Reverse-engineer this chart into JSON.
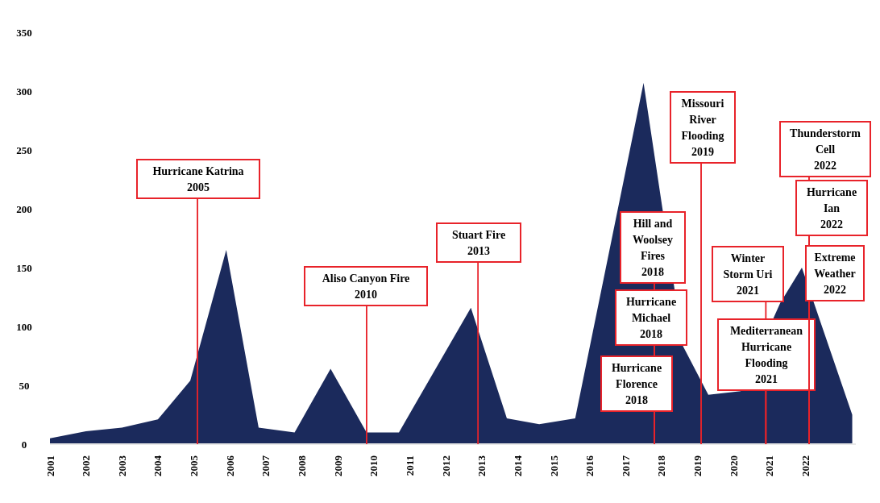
{
  "chart_data": {
    "type": "area",
    "x": [
      2001,
      2002,
      2003,
      2004,
      2004.9,
      2005.9,
      2006.8,
      2007.8,
      2008.8,
      2009.8,
      2010.7,
      2012.7,
      2013.7,
      2014.6,
      2015.6,
      2016.6,
      2017.5,
      2018.6,
      2019.3,
      2020.2,
      2021.3,
      2021.9,
      2022.6,
      2023.3
    ],
    "series": [
      {
        "color": "#1b2a5c",
        "values": [
          5,
          11,
          14,
          21,
          54,
          165,
          14,
          10,
          64,
          10,
          10,
          116,
          22,
          17,
          22,
          null,
          307,
          83,
          42,
          45,
          120,
          150,
          null,
          25
        ]
      }
    ],
    "xlim": [
      2001,
      2023.4
    ],
    "xticks": [
      2001,
      2002,
      2003,
      2004,
      2005,
      2006,
      2007,
      2008,
      2009,
      2010,
      2011,
      2012,
      2013,
      2014,
      2015,
      2016,
      2017,
      2018,
      2019,
      2020,
      2021,
      2022
    ],
    "ylim": [
      0,
      350
    ],
    "yticks": [
      0,
      50,
      100,
      150,
      200,
      250,
      300,
      350
    ],
    "annotations": [
      {
        "text": "Hurricane Katrina\n2005",
        "x": 2005.1,
        "y": 0
      },
      {
        "text": "Aliso Canyon Fire\n2010",
        "x": 2009.8,
        "y": 0
      },
      {
        "text": "Stuart Fire\n2013",
        "x": 2012.9,
        "y": 0
      },
      {
        "text": "Hill and\nWoolsey\nFires\n2018",
        "x": 2017.8,
        "y": 0
      },
      {
        "text": "Hurricane\nMichael\n2018",
        "x": 2017.8,
        "y": 0
      },
      {
        "text": "Hurricane\nFlorence\n2018",
        "x": 2017.8,
        "y": 0
      },
      {
        "text": "Missouri\nRiver\nFlooding\n2019",
        "x": 2019.1,
        "y": 0
      },
      {
        "text": "Winter\nStorm Uri\n2021",
        "x": 2020.9,
        "y": 0
      },
      {
        "text": "Mediterranean\nHurricane\nFlooding\n2021",
        "x": 2020.9,
        "y": 0
      },
      {
        "text": "Thunderstorm\nCell\n2022",
        "x": 2022.1,
        "y": 0
      },
      {
        "text": "Hurricane\nIan\n2022",
        "x": 2022.1,
        "y": 0
      },
      {
        "text": "Extreme\nWeather\n2022",
        "x": 2022.1,
        "y": 0
      }
    ]
  }
}
